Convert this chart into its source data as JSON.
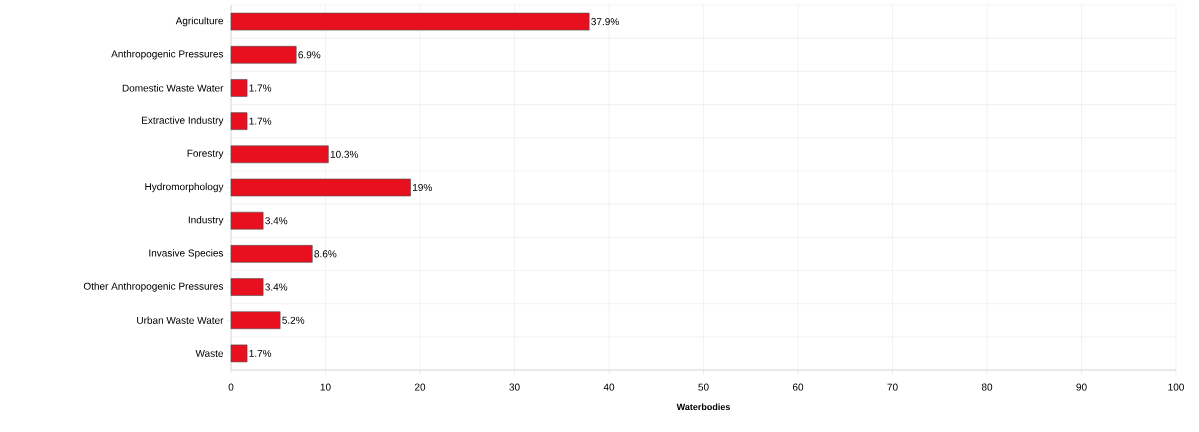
{
  "chart_data": {
    "type": "bar",
    "orientation": "horizontal",
    "xlabel": "Waterbodies",
    "categories": [
      "Agriculture",
      "Anthropogenic Pressures",
      "Domestic Waste Water",
      "Extractive Industry",
      "Forestry",
      "Hydromorphology",
      "Industry",
      "Invasive Species",
      "Other Anthropogenic Pressures",
      "Urban Waste Water",
      "Waste"
    ],
    "values": [
      37.9,
      6.9,
      1.7,
      1.7,
      10.3,
      19,
      3.4,
      8.6,
      3.4,
      5.2,
      1.7
    ],
    "value_labels": [
      "37.9%",
      "6.9%",
      "1.7%",
      "1.7%",
      "10.3%",
      "19%",
      "3.4%",
      "8.6%",
      "3.4%",
      "5.2%",
      "1.7%"
    ],
    "color": "#e8101e",
    "xlim": [
      0,
      100
    ],
    "xticks": [
      0,
      10,
      20,
      30,
      40,
      50,
      60,
      70,
      80,
      90,
      100
    ],
    "grid": true
  }
}
